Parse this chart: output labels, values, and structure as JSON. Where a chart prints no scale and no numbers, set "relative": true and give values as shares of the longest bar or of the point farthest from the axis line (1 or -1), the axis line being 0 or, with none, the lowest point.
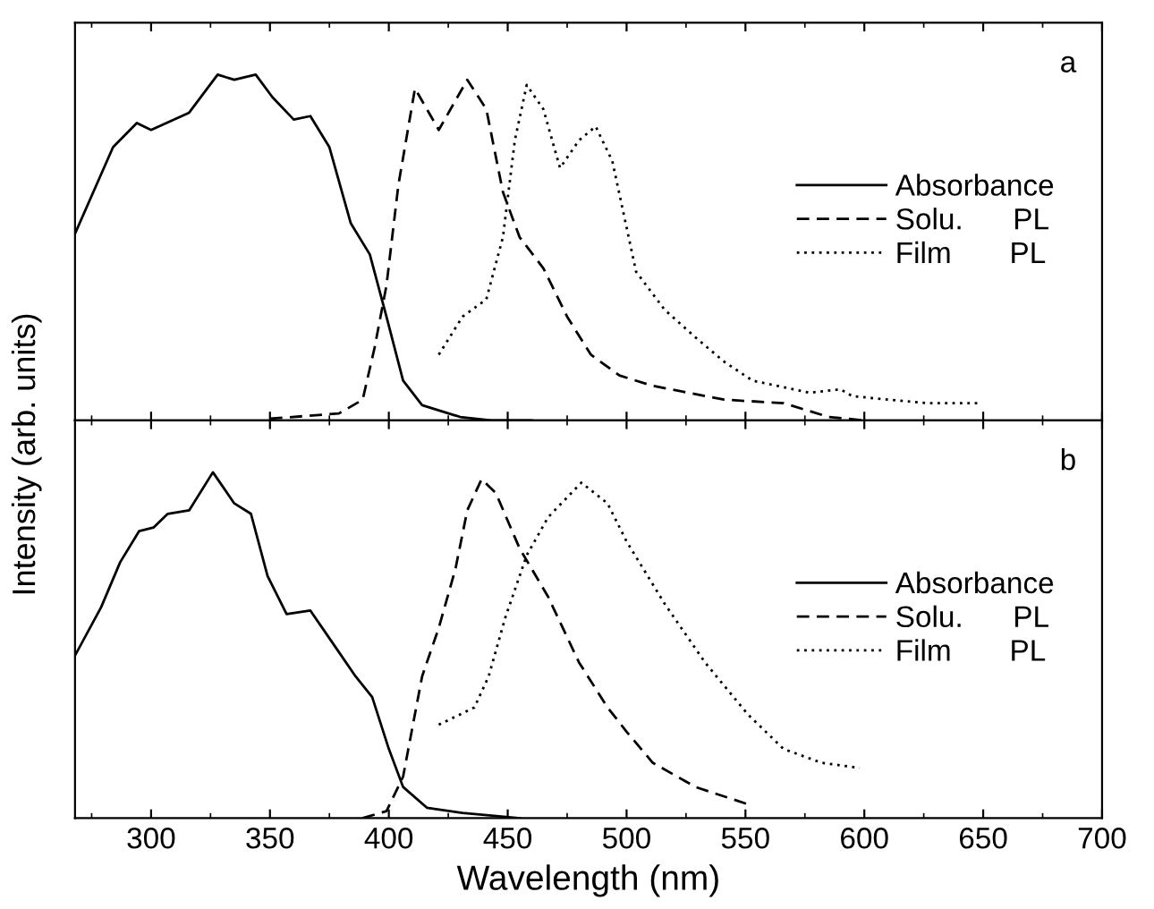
{
  "chart_data": [
    {
      "type": "line",
      "title": "a",
      "ylabel": "Intensity (arb. units)",
      "relative": true,
      "xlim": [
        268,
        700
      ],
      "xticks": [
        300,
        350,
        400,
        450,
        500,
        550,
        600,
        650,
        700
      ],
      "tick_labels": false,
      "legend": "right",
      "series": [
        {
          "name": "Absorbance",
          "color": "#000000",
          "line_style": "solid",
          "x": [
            268,
            284,
            294,
            300,
            316,
            328,
            335,
            344,
            351,
            360,
            367,
            375,
            384,
            392,
            399,
            406,
            414,
            430,
            443,
            460
          ],
          "values": [
            0.54,
            0.79,
            0.86,
            0.84,
            0.89,
            1.0,
            0.985,
            1.0,
            0.935,
            0.87,
            0.88,
            0.79,
            0.57,
            0.48,
            0.3,
            0.115,
            0.044,
            0.01,
            0,
            0
          ]
        },
        {
          "name": "Solu.      PL",
          "color": "#000000",
          "line_style": "dashed",
          "x": [
            350,
            379,
            389,
            394,
            399,
            404,
            411,
            421,
            433,
            441,
            448,
            455,
            465,
            475,
            485,
            497,
            511,
            541,
            566,
            585,
            600
          ],
          "values": [
            0.005,
            0.02,
            0.06,
            0.21,
            0.39,
            0.68,
            0.96,
            0.84,
            0.985,
            0.9,
            0.66,
            0.53,
            0.44,
            0.3,
            0.19,
            0.13,
            0.1,
            0.06,
            0.05,
            0.01,
            0
          ]
        },
        {
          "name": "Film       PL",
          "color": "#000000",
          "line_style": "dotted",
          "x": [
            421,
            431,
            441,
            448,
            453,
            458,
            465,
            472,
            480,
            487,
            494,
            504,
            516,
            529,
            541,
            553,
            577,
            590,
            595,
            626,
            648
          ],
          "values": [
            0.19,
            0.3,
            0.35,
            0.53,
            0.81,
            0.97,
            0.9,
            0.73,
            0.81,
            0.85,
            0.75,
            0.43,
            0.32,
            0.24,
            0.17,
            0.115,
            0.08,
            0.09,
            0.07,
            0.05,
            0.05
          ]
        }
      ]
    },
    {
      "type": "line",
      "title": "b",
      "xlabel": "Wavelength (nm)",
      "relative": true,
      "xlim": [
        268,
        700
      ],
      "xticks": [
        300,
        350,
        400,
        450,
        500,
        550,
        600,
        650,
        700
      ],
      "tick_labels": "x",
      "legend": "right",
      "series": [
        {
          "name": "Absorbance",
          "color": "#000000",
          "line_style": "solid",
          "x": [
            268,
            279,
            287,
            295,
            301,
            307,
            316,
            326,
            335,
            342,
            349,
            357,
            367,
            377,
            386,
            393,
            400,
            406,
            416,
            431,
            455
          ],
          "values": [
            0.47,
            0.61,
            0.74,
            0.83,
            0.84,
            0.88,
            0.89,
            1.0,
            0.91,
            0.88,
            0.7,
            0.59,
            0.6,
            0.5,
            0.41,
            0.35,
            0.2,
            0.09,
            0.03,
            0.015,
            0
          ]
        },
        {
          "name": "Solu.      PL",
          "color": "#000000",
          "line_style": "dashed",
          "x": [
            389,
            399,
            406,
            414,
            421,
            428,
            433,
            439,
            445,
            455,
            467,
            480,
            492,
            500,
            511,
            529,
            551
          ],
          "values": [
            0,
            0.02,
            0.12,
            0.41,
            0.55,
            0.72,
            0.89,
            0.98,
            0.94,
            0.78,
            0.64,
            0.45,
            0.32,
            0.25,
            0.16,
            0.09,
            0.04
          ]
        },
        {
          "name": "Film       PL",
          "color": "#000000",
          "line_style": "dotted",
          "x": [
            421,
            436,
            442,
            449,
            458,
            467,
            481,
            492,
            500,
            516,
            533,
            551,
            566,
            582,
            598
          ],
          "values": [
            0.27,
            0.32,
            0.41,
            0.58,
            0.76,
            0.87,
            0.97,
            0.91,
            0.8,
            0.62,
            0.45,
            0.3,
            0.2,
            0.16,
            0.145
          ]
        }
      ]
    }
  ]
}
